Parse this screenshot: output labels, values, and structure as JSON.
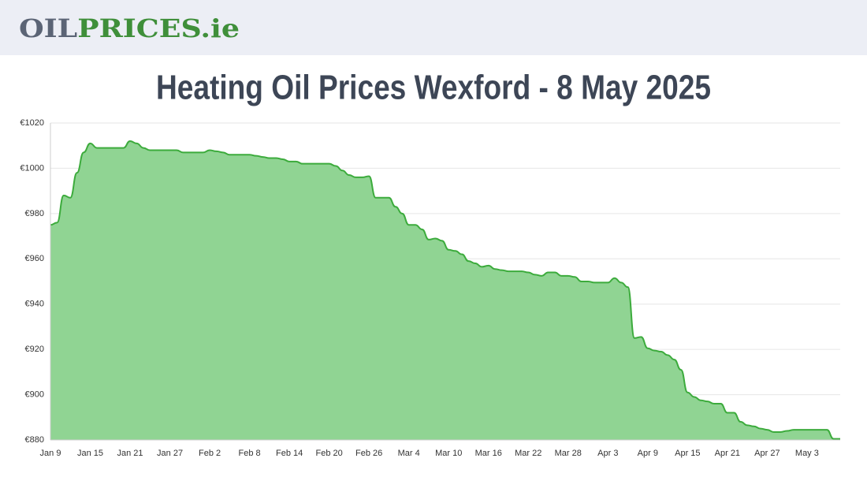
{
  "header": {
    "logo": [
      "OIL",
      "PRICES.ie"
    ]
  },
  "chart_data": {
    "type": "area",
    "title": "Heating Oil Prices Wexford - 8 May 2025",
    "color": "#3cab3c",
    "fill": "#90d493",
    "grid": true,
    "categories": [
      "Jan 9",
      null,
      null,
      null,
      null,
      null,
      "Jan 15",
      null,
      null,
      null,
      null,
      null,
      "Jan 21",
      null,
      null,
      null,
      null,
      null,
      "Jan 27",
      null,
      null,
      null,
      null,
      null,
      "Feb 2",
      null,
      null,
      null,
      null,
      null,
      "Feb 8",
      null,
      null,
      null,
      null,
      null,
      "Feb 14",
      null,
      null,
      null,
      null,
      null,
      "Feb 20",
      null,
      null,
      null,
      null,
      null,
      "Feb 26",
      null,
      null,
      null,
      null,
      null,
      "Mar 4",
      null,
      null,
      null,
      null,
      null,
      "Mar 10",
      null,
      null,
      null,
      null,
      null,
      "Mar 16",
      null,
      null,
      null,
      null,
      null,
      "Mar 22",
      null,
      null,
      null,
      null,
      null,
      "Mar 28",
      null,
      null,
      null,
      null,
      null,
      "Apr 3",
      null,
      null,
      null,
      null,
      null,
      "Apr 9",
      null,
      null,
      null,
      null,
      null,
      "Apr 15",
      null,
      null,
      null,
      null,
      null,
      "Apr 21",
      null,
      null,
      null,
      null,
      null,
      "Apr 27",
      null,
      null,
      null,
      null,
      null,
      "May 3",
      null,
      null,
      null,
      null,
      null
    ],
    "values": [
      975,
      976,
      988,
      987,
      998,
      1007,
      1011,
      1009,
      1009,
      1009,
      1009,
      1009,
      1012,
      1011,
      1009,
      1008,
      1008,
      1008,
      1008,
      1008,
      1007,
      1007,
      1007,
      1007,
      1008,
      1007.5,
      1007,
      1006,
      1006,
      1006,
      1006,
      1005.5,
      1005,
      1004.5,
      1004.5,
      1004,
      1003,
      1003,
      1002,
      1002,
      1002,
      1002,
      1002,
      1001,
      999,
      997,
      996,
      996,
      996.5,
      987,
      987,
      987,
      983,
      980,
      975,
      975,
      973,
      968.5,
      969,
      968,
      964,
      963.5,
      962,
      959,
      958,
      956.5,
      957,
      955.5,
      955,
      954.5,
      954.5,
      954.5,
      954,
      953,
      952.5,
      954,
      954,
      952.5,
      952.5,
      952,
      950,
      950,
      949.5,
      949.5,
      949.5,
      951.5,
      949.5,
      947.5,
      925,
      925.5,
      920.5,
      919.5,
      919,
      917.5,
      915.5,
      911,
      901,
      899,
      897.5,
      897,
      896,
      896,
      892,
      892,
      888,
      886.5,
      886,
      885,
      884.5,
      883.5,
      883.5,
      884,
      884.5,
      884.5,
      884.5,
      884.5,
      884.5,
      884.5,
      880.5,
      880.5
    ],
    "ylim": [
      880,
      1020
    ],
    "yticks": [
      {
        "value": 880,
        "label": "€880"
      },
      {
        "value": 900,
        "label": "€900"
      },
      {
        "value": 920,
        "label": "€920"
      },
      {
        "value": 940,
        "label": "€940"
      },
      {
        "value": 960,
        "label": "€960"
      },
      {
        "value": 980,
        "label": "€980"
      },
      {
        "value": 1000,
        "label": "€1000"
      },
      {
        "value": 1020,
        "label": "€1020"
      }
    ]
  }
}
